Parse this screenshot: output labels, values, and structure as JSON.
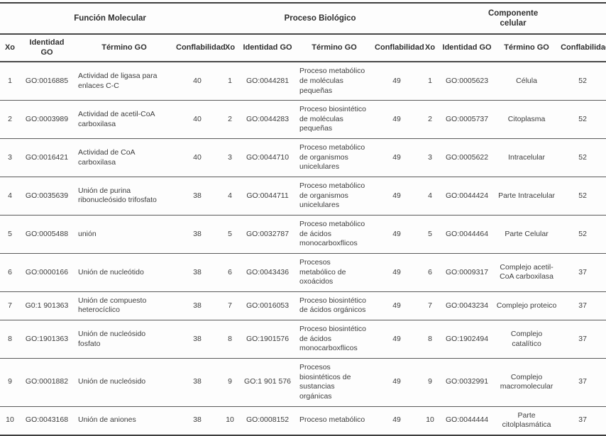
{
  "table": {
    "groups": [
      {
        "title": "Función Molecular",
        "headers": [
          "Xo",
          "Identidad\nGO",
          "Término GO",
          "Conflabilidad"
        ]
      },
      {
        "title": "Proceso Biológico",
        "headers": [
          "Xo",
          "Identidad GO",
          "Término GO",
          "Conflabilidad"
        ]
      },
      {
        "title": "Componente\ncelular",
        "headers": [
          "Xo",
          "Identidad GO",
          "Término GO",
          "Conflabilidad"
        ]
      }
    ],
    "rows": [
      {
        "mf": {
          "xo": "1",
          "id": "GO:0016885",
          "term": "Actividad de ligasa para enlaces C-C",
          "conf": "40"
        },
        "bp": {
          "xo": "1",
          "id": "GO:0044281",
          "term": "Proceso metabólico de moléculas pequeñas",
          "conf": "49"
        },
        "cc": {
          "xo": "1",
          "id": "GO:0005623",
          "term": "Célula",
          "conf": "52"
        }
      },
      {
        "mf": {
          "xo": "2",
          "id": "GO:0003989",
          "term": "Actividad de acetil-CoA carboxilasa",
          "conf": "40"
        },
        "bp": {
          "xo": "2",
          "id": "GO:0044283",
          "term": "Proceso biosintético de moléculas pequeñas",
          "conf": "49"
        },
        "cc": {
          "xo": "2",
          "id": "GO:0005737",
          "term": "Citoplasma",
          "conf": "52"
        }
      },
      {
        "mf": {
          "xo": "3",
          "id": "GO:0016421",
          "term": "Actividad de CoA carboxilasa",
          "conf": "40"
        },
        "bp": {
          "xo": "3",
          "id": "GO:0044710",
          "term": "Proceso metabólico de organismos unicelulares",
          "conf": "49"
        },
        "cc": {
          "xo": "3",
          "id": "GO:0005622",
          "term": "Intracelular",
          "conf": "52"
        }
      },
      {
        "mf": {
          "xo": "4",
          "id": "GO:0035639",
          "term": "Unión de purina ribonucleósido trifosfato",
          "conf": "38"
        },
        "bp": {
          "xo": "4",
          "id": "GO:0044711",
          "term": "Proceso metabólico de organismos unicelulares",
          "conf": "49"
        },
        "cc": {
          "xo": "4",
          "id": "GO:0044424",
          "term": "Parte Intracelular",
          "conf": "52"
        }
      },
      {
        "mf": {
          "xo": "5",
          "id": "GO:0005488",
          "term": "unión",
          "conf": "38"
        },
        "bp": {
          "xo": "5",
          "id": "GO:0032787",
          "term": "Proceso metabólico de ácidos monocarboxflicos",
          "conf": "49"
        },
        "cc": {
          "xo": "5",
          "id": "GO:0044464",
          "term": "Parte Celular",
          "conf": "52"
        }
      },
      {
        "mf": {
          "xo": "6",
          "id": "GO:0000166",
          "term": "Unión de nucleótido",
          "conf": "38"
        },
        "bp": {
          "xo": "6",
          "id": "GO:0043436",
          "term": "Procesos metabólico de oxoácidos",
          "conf": "49"
        },
        "cc": {
          "xo": "6",
          "id": "GO:0009317",
          "term": "Complejo acetil-CoA carboxilasa",
          "conf": "37"
        }
      },
      {
        "mf": {
          "xo": "7",
          "id": "G0:1 901363",
          "term": "Unión de compuesto heterocíclico",
          "conf": "38"
        },
        "bp": {
          "xo": "7",
          "id": "GO:0016053",
          "term": "Proceso biosintético de ácidos orgánicos",
          "conf": "49"
        },
        "cc": {
          "xo": "7",
          "id": "GO:0043234",
          "term": "Complejo proteico",
          "conf": "37"
        }
      },
      {
        "mf": {
          "xo": "8",
          "id": "GO:1901363",
          "term": "Unión de nucleósido fosfato",
          "conf": "38"
        },
        "bp": {
          "xo": "8",
          "id": "GO:1901576",
          "term": "Proceso biosintético de ácidos monocarboxflicos",
          "conf": "49"
        },
        "cc": {
          "xo": "8",
          "id": "GO:1902494",
          "term": "Complejo catalítico",
          "conf": "37"
        }
      },
      {
        "mf": {
          "xo": "9",
          "id": "GO:0001882",
          "term": "Unión de nucleósido",
          "conf": "38"
        },
        "bp": {
          "xo": "9",
          "id": "GO:1 901 576",
          "term": "Procesos biosintéticos de sustancias orgánicas",
          "conf": "49"
        },
        "cc": {
          "xo": "9",
          "id": "GO:0032991",
          "term": "Complejo macromolecular",
          "conf": "37"
        }
      },
      {
        "mf": {
          "xo": "10",
          "id": "GO:0043168",
          "term": "Unión de aniones",
          "conf": "38"
        },
        "bp": {
          "xo": "10",
          "id": "GO:0008152",
          "term": "Proceso metabólico",
          "conf": "49"
        },
        "cc": {
          "xo": "10",
          "id": "GO:0044444",
          "term": "Parte citolplasmática",
          "conf": "37"
        }
      }
    ]
  }
}
